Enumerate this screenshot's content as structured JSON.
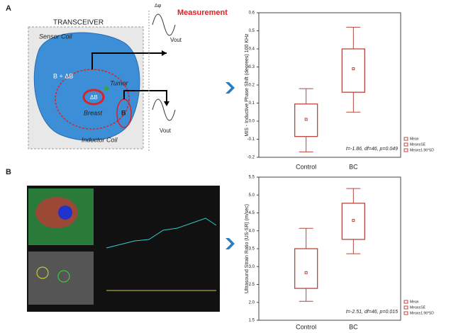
{
  "panels": {
    "a": "A",
    "b": "B"
  },
  "diagram": {
    "transceiver": "TRANSCEIVER",
    "sensor_coil": "Sensor Coil",
    "measurement": "Measurement",
    "phase": "Δφ",
    "field": "B + ΔB",
    "delta_b": "ΔB",
    "tumor": "Tumor",
    "breast": "Breast",
    "b": "B",
    "vout_top": "Vout",
    "vout_bottom": "Vout",
    "inductor_coil": "Inductor Coil"
  },
  "chart_data": [
    {
      "type": "box",
      "ylabel": "MIS - Inductive Phase Shift (degrees) 100 KHz",
      "annotation": "t=-1.86, df=46, p=0.049",
      "categories": [
        "Control",
        "BC"
      ],
      "color": "#b5483f",
      "legend": [
        "Mean",
        "Mean±SE",
        "Mean±1.96*SD"
      ],
      "mean": [
        0.01,
        0.29
      ],
      "se_low": [
        -0.085,
        0.16
      ],
      "se_high": [
        0.095,
        0.4
      ],
      "sd_low": [
        -0.17,
        0.05
      ],
      "sd_high": [
        0.18,
        0.52
      ],
      "ylim": [
        -0.2,
        0.6
      ],
      "yticks": [
        -0.2,
        -0.1,
        {
          "value": 0,
          "label": "0.0"
        },
        0.1,
        0.2,
        0.3,
        0.4,
        0.5,
        0.6
      ]
    },
    {
      "type": "box",
      "ylabel": "Ultrasound Strain Ratio (US-SR) (m/sec)",
      "annotation": "t=-2.51, df=46, p=0.015",
      "categories": [
        "Control",
        "BC"
      ],
      "color": "#b5483f",
      "legend": [
        "Mean",
        "Mean±SE",
        "Mean±1.96*SD"
      ],
      "mean": [
        2.83,
        4.29
      ],
      "se_low": [
        2.39,
        3.76
      ],
      "se_high": [
        3.5,
        4.77
      ],
      "sd_low": [
        2.03,
        3.36
      ],
      "sd_high": [
        4.07,
        5.18
      ],
      "ylim": [
        1.5,
        5.5
      ],
      "yticks": [
        1.5,
        {
          "value": 2,
          "label": "2.0"
        },
        2.5,
        {
          "value": 3,
          "label": "3.0"
        },
        3.5,
        {
          "value": 4,
          "label": "4.0"
        },
        4.5,
        {
          "value": 5,
          "label": "5.0"
        },
        5.5
      ]
    }
  ]
}
